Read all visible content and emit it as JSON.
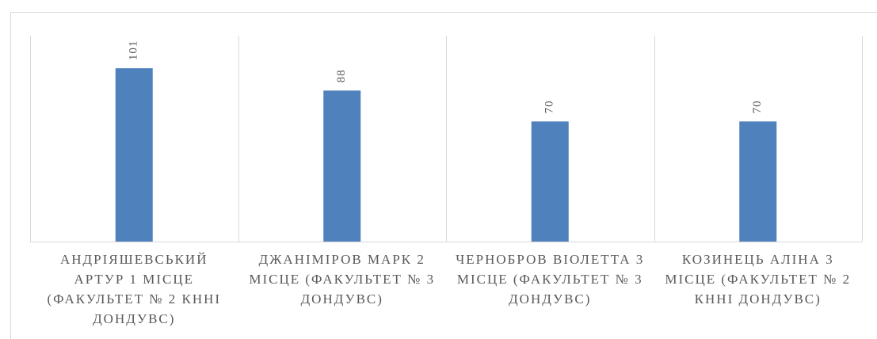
{
  "chart_data": {
    "type": "bar",
    "categories": [
      "АНДРІЯШЕВСЬКИЙ АРТУР 1 МІСЦЕ (ФАКУЛЬТЕТ № 2 КННІ ДОНДУВС)",
      "ДЖАНІМІРОВ МАРК 2 МІСЦЕ (ФАКУЛЬТЕТ № 3 ДОНДУВС)",
      "ЧЕРНОБРОВ ВІОЛЕТТА 3 МІСЦЕ (ФАКУЛЬТЕТ № 3 ДОНДУВС)",
      "КОЗИНЕЦЬ АЛІНА 3 МІСЦЕ (ФАКУЛЬТЕТ № 2 КННІ ДОНДУВС)"
    ],
    "values": [
      101,
      88,
      70,
      70
    ],
    "color": "#4f81bd",
    "ylim": [
      0,
      120
    ],
    "data_labels": true
  }
}
